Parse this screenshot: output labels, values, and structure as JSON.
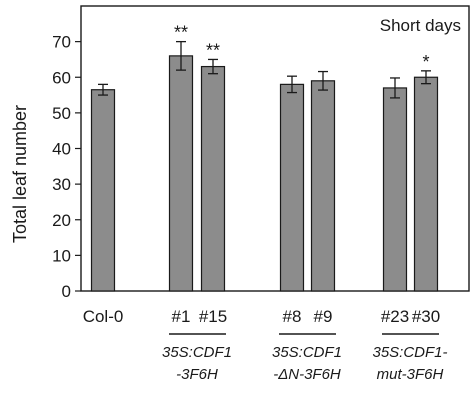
{
  "chart_data": {
    "type": "bar",
    "annotation": "Short days",
    "ylabel": "Total leaf number",
    "ylim": [
      0,
      80
    ],
    "yticks": [
      0,
      10,
      20,
      30,
      40,
      50,
      60,
      70
    ],
    "bars": [
      {
        "label": "Col-0",
        "value": 56.5,
        "error": 1.5,
        "significance": ""
      },
      {
        "label": "#1",
        "value": 66.0,
        "error": 4.0,
        "significance": "**"
      },
      {
        "label": "#15",
        "value": 63.0,
        "error": 2.0,
        "significance": "**"
      },
      {
        "label": "#8",
        "value": 58.0,
        "error": 2.3,
        "significance": ""
      },
      {
        "label": "#9",
        "value": 59.0,
        "error": 2.6,
        "significance": ""
      },
      {
        "label": "#23",
        "value": 57.0,
        "error": 2.8,
        "significance": ""
      },
      {
        "label": "#30",
        "value": 60.0,
        "error": 1.8,
        "significance": "*"
      }
    ],
    "groups": [
      {
        "line1": "35S:CDF1",
        "line2": "-3F6H"
      },
      {
        "line1": "35S:CDF1",
        "line2": "-ΔN-3F6H"
      },
      {
        "line1": "35S:CDF1-",
        "line2": "mut-3F6H"
      }
    ],
    "colors": {
      "bar": "#8c8c8c",
      "stroke": "#1a1a1a"
    }
  }
}
